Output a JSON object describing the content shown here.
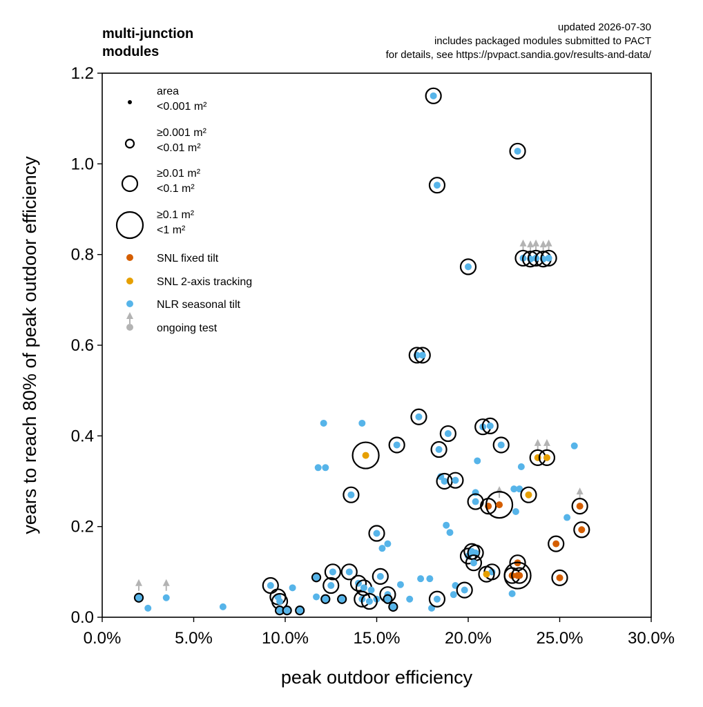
{
  "header": {
    "title_line1": "multi-junction",
    "title_line2": "modules",
    "note_line1": "updated 2026-07-30",
    "note_line2": "includes packaged modules submitted to PACT",
    "note_line3": "for details, see https://pvpact.sandia.gov/results-and-data/"
  },
  "colors": {
    "snl_fixed": "#d55e00",
    "snl_tracking": "#e69f00",
    "nlr": "#56b4e9",
    "ongoing": "#b3b3b3"
  },
  "legend": {
    "area_title": "area",
    "size0": "<0.001 m²",
    "size1a": "≥0.001 m²",
    "size1b": "<0.01 m²",
    "size2a": "≥0.01 m²",
    "size2b": "<0.1 m²",
    "size3a": "≥0.1 m²",
    "size3b": "<1 m²",
    "snl_fixed": "SNL fixed tilt",
    "snl_tracking": "SNL 2-axis tracking",
    "nlr": "NLR seasonal tilt",
    "ongoing": "ongoing test"
  },
  "chart_data": {
    "type": "scatter",
    "xlabel": "peak outdoor efficiency",
    "ylabel": "years to reach 80% of peak outdoor efficiency",
    "xlim": [
      0,
      30
    ],
    "ylim": [
      0,
      1.2
    ],
    "xticks": [
      "0.0%",
      "5.0%",
      "10.0%",
      "15.0%",
      "20.0%",
      "25.0%",
      "30.0%"
    ],
    "yticks": [
      "0.0",
      "0.2",
      "0.4",
      "0.6",
      "0.8",
      "1.0",
      "1.2"
    ],
    "grid": false,
    "legend_position": "top-left",
    "size_classes": [
      "<0.001 m²",
      "≥0.001 m² <0.01 m²",
      "≥0.01 m² <0.1 m²",
      "≥0.1 m² <1 m²"
    ],
    "series": [
      {
        "name": "NLR seasonal tilt",
        "points": [
          {
            "x": 18.1,
            "y": 1.15,
            "s": 2
          },
          {
            "x": 22.7,
            "y": 1.028,
            "s": 2
          },
          {
            "x": 18.3,
            "y": 0.953,
            "s": 2
          },
          {
            "x": 20.0,
            "y": 0.773,
            "s": 2
          },
          {
            "x": 23.0,
            "y": 0.792,
            "s": 2,
            "ongoing": true
          },
          {
            "x": 23.4,
            "y": 0.79,
            "s": 2,
            "ongoing": true
          },
          {
            "x": 23.7,
            "y": 0.792,
            "s": 2,
            "ongoing": true
          },
          {
            "x": 24.1,
            "y": 0.79,
            "s": 2,
            "ongoing": true
          },
          {
            "x": 24.4,
            "y": 0.792,
            "s": 2,
            "ongoing": true
          },
          {
            "x": 17.2,
            "y": 0.578,
            "s": 2
          },
          {
            "x": 17.5,
            "y": 0.578,
            "s": 2
          },
          {
            "x": 17.3,
            "y": 0.442,
            "s": 2
          },
          {
            "x": 12.1,
            "y": 0.428,
            "s": 0
          },
          {
            "x": 14.2,
            "y": 0.428,
            "s": 0
          },
          {
            "x": 16.1,
            "y": 0.38,
            "s": 2
          },
          {
            "x": 18.9,
            "y": 0.405,
            "s": 2
          },
          {
            "x": 20.8,
            "y": 0.42,
            "s": 2
          },
          {
            "x": 21.2,
            "y": 0.422,
            "s": 2
          },
          {
            "x": 18.4,
            "y": 0.37,
            "s": 2
          },
          {
            "x": 21.8,
            "y": 0.38,
            "s": 2
          },
          {
            "x": 25.8,
            "y": 0.378,
            "s": 0
          },
          {
            "x": 11.8,
            "y": 0.33,
            "s": 0
          },
          {
            "x": 12.2,
            "y": 0.33,
            "s": 0
          },
          {
            "x": 20.5,
            "y": 0.345,
            "s": 0
          },
          {
            "x": 22.9,
            "y": 0.332,
            "s": 0
          },
          {
            "x": 18.5,
            "y": 0.31,
            "s": 0
          },
          {
            "x": 18.7,
            "y": 0.3,
            "s": 2
          },
          {
            "x": 19.3,
            "y": 0.302,
            "s": 2
          },
          {
            "x": 13.6,
            "y": 0.27,
            "s": 2
          },
          {
            "x": 20.4,
            "y": 0.275,
            "s": 0
          },
          {
            "x": 20.4,
            "y": 0.255,
            "s": 2
          },
          {
            "x": 22.5,
            "y": 0.283,
            "s": 0
          },
          {
            "x": 22.8,
            "y": 0.283,
            "s": 0
          },
          {
            "x": 22.6,
            "y": 0.233,
            "s": 0
          },
          {
            "x": 25.4,
            "y": 0.22,
            "s": 0
          },
          {
            "x": 18.8,
            "y": 0.203,
            "s": 0
          },
          {
            "x": 19.0,
            "y": 0.187,
            "s": 0
          },
          {
            "x": 15.0,
            "y": 0.185,
            "s": 2
          },
          {
            "x": 15.6,
            "y": 0.162,
            "s": 0
          },
          {
            "x": 15.3,
            "y": 0.152,
            "s": 0
          },
          {
            "x": 20.0,
            "y": 0.135,
            "s": 2
          },
          {
            "x": 20.2,
            "y": 0.145,
            "s": 2
          },
          {
            "x": 20.4,
            "y": 0.142,
            "s": 2
          },
          {
            "x": 20.3,
            "y": 0.12,
            "s": 2
          },
          {
            "x": 21.3,
            "y": 0.1,
            "s": 2
          },
          {
            "x": 22.4,
            "y": 0.052,
            "s": 0
          },
          {
            "x": 11.7,
            "y": 0.088,
            "s": 1
          },
          {
            "x": 12.6,
            "y": 0.1,
            "s": 2
          },
          {
            "x": 13.5,
            "y": 0.1,
            "s": 2
          },
          {
            "x": 14.0,
            "y": 0.075,
            "s": 2
          },
          {
            "x": 15.2,
            "y": 0.09,
            "s": 2
          },
          {
            "x": 16.3,
            "y": 0.072,
            "s": 0
          },
          {
            "x": 17.4,
            "y": 0.085,
            "s": 0
          },
          {
            "x": 17.9,
            "y": 0.085,
            "s": 0
          },
          {
            "x": 12.5,
            "y": 0.07,
            "s": 2
          },
          {
            "x": 14.3,
            "y": 0.065,
            "s": 2
          },
          {
            "x": 14.7,
            "y": 0.06,
            "s": 0
          },
          {
            "x": 15.0,
            "y": 0.04,
            "s": 0
          },
          {
            "x": 15.6,
            "y": 0.05,
            "s": 2
          },
          {
            "x": 14.2,
            "y": 0.04,
            "s": 2
          },
          {
            "x": 14.6,
            "y": 0.035,
            "s": 2
          },
          {
            "x": 13.1,
            "y": 0.04,
            "s": 1
          },
          {
            "x": 12.2,
            "y": 0.04,
            "s": 1
          },
          {
            "x": 15.6,
            "y": 0.04,
            "s": 1
          },
          {
            "x": 15.9,
            "y": 0.023,
            "s": 1
          },
          {
            "x": 16.8,
            "y": 0.04,
            "s": 0
          },
          {
            "x": 18.0,
            "y": 0.02,
            "s": 0
          },
          {
            "x": 18.3,
            "y": 0.04,
            "s": 2
          },
          {
            "x": 19.3,
            "y": 0.07,
            "s": 0
          },
          {
            "x": 19.8,
            "y": 0.06,
            "s": 2
          },
          {
            "x": 19.2,
            "y": 0.05,
            "s": 0
          },
          {
            "x": 9.2,
            "y": 0.07,
            "s": 2
          },
          {
            "x": 9.6,
            "y": 0.045,
            "s": 2
          },
          {
            "x": 9.7,
            "y": 0.035,
            "s": 2
          },
          {
            "x": 9.7,
            "y": 0.015,
            "s": 1
          },
          {
            "x": 10.1,
            "y": 0.015,
            "s": 1
          },
          {
            "x": 10.8,
            "y": 0.015,
            "s": 1
          },
          {
            "x": 10.4,
            "y": 0.065,
            "s": 0
          },
          {
            "x": 11.7,
            "y": 0.045,
            "s": 0
          },
          {
            "x": 6.6,
            "y": 0.023,
            "s": 0
          },
          {
            "x": 2.0,
            "y": 0.043,
            "s": 1,
            "ongoing": true
          },
          {
            "x": 3.5,
            "y": 0.043,
            "s": 0,
            "ongoing": true
          },
          {
            "x": 2.5,
            "y": 0.02,
            "s": 0
          }
        ]
      },
      {
        "name": "SNL fixed tilt",
        "points": [
          {
            "x": 21.1,
            "y": 0.245,
            "s": 2
          },
          {
            "x": 21.7,
            "y": 0.248,
            "s": 3,
            "ongoing": true
          },
          {
            "x": 24.8,
            "y": 0.162,
            "s": 2
          },
          {
            "x": 26.1,
            "y": 0.245,
            "s": 2,
            "ongoing": true
          },
          {
            "x": 26.2,
            "y": 0.193,
            "s": 2
          },
          {
            "x": 25.0,
            "y": 0.087,
            "s": 2
          },
          {
            "x": 22.4,
            "y": 0.092,
            "s": 2
          },
          {
            "x": 22.8,
            "y": 0.092,
            "s": 2
          },
          {
            "x": 22.7,
            "y": 0.12,
            "s": 2
          },
          {
            "x": 22.7,
            "y": 0.092,
            "s": 3
          }
        ]
      },
      {
        "name": "SNL 2-axis tracking",
        "points": [
          {
            "x": 14.4,
            "y": 0.357,
            "s": 3
          },
          {
            "x": 23.3,
            "y": 0.27,
            "s": 2
          },
          {
            "x": 23.8,
            "y": 0.352,
            "s": 2,
            "ongoing": true
          },
          {
            "x": 24.3,
            "y": 0.352,
            "s": 2,
            "ongoing": true
          },
          {
            "x": 21.0,
            "y": 0.095,
            "s": 2
          }
        ]
      }
    ]
  }
}
